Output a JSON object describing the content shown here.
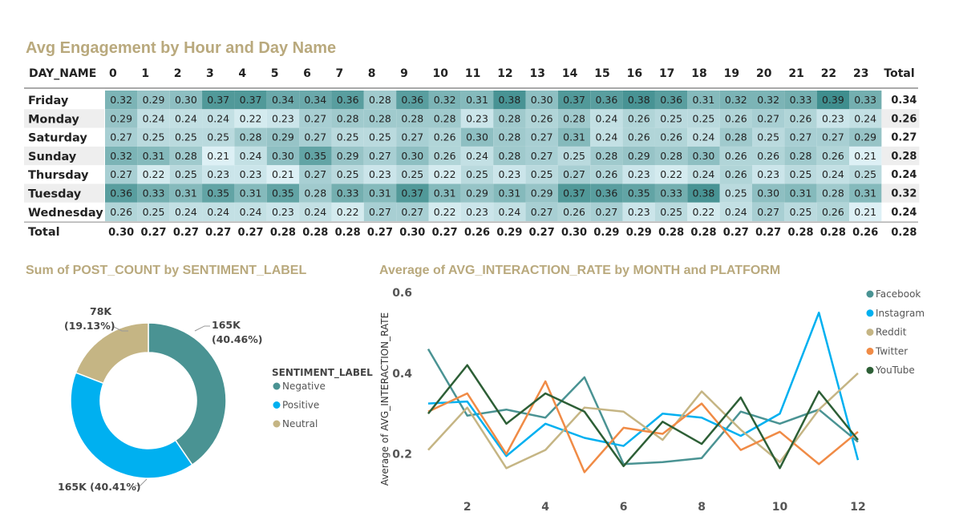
{
  "titles": {
    "heatmap": "Avg Engagement by Hour and Day Name",
    "donut": "Sum of POST_COUNT by SENTIMENT_LABEL",
    "line": "Average of AVG_INTERACTION_RATE by MONTH and PLATFORM"
  },
  "colors": {
    "title": "#b9a97d",
    "heat_low": "#ddf0f5",
    "heat_high": "#3f8e8e",
    "negative": "#4a9393",
    "positive": "#00b0f0",
    "neutral": "#c5b584",
    "facebook": "#4a9393",
    "instagram": "#00b0f0",
    "reddit": "#c5b584",
    "twitter": "#f08b46",
    "youtube": "#2d5f36"
  },
  "chart_data": [
    {
      "type": "heatmap",
      "title": "Avg Engagement by Hour and Day Name",
      "row_header": "DAY_NAME",
      "columns": [
        "0",
        "1",
        "2",
        "3",
        "4",
        "5",
        "6",
        "7",
        "8",
        "9",
        "10",
        "11",
        "12",
        "13",
        "14",
        "15",
        "16",
        "17",
        "18",
        "19",
        "20",
        "21",
        "22",
        "23"
      ],
      "total_label": "Total",
      "rows": [
        {
          "name": "Friday",
          "values": [
            0.32,
            0.29,
            0.3,
            0.37,
            0.37,
            0.34,
            0.34,
            0.36,
            0.28,
            0.36,
            0.32,
            0.31,
            0.38,
            0.3,
            0.37,
            0.36,
            0.38,
            0.36,
            0.31,
            0.32,
            0.32,
            0.33,
            0.39,
            0.33
          ],
          "total": 0.34
        },
        {
          "name": "Monday",
          "values": [
            0.29,
            0.24,
            0.24,
            0.24,
            0.22,
            0.23,
            0.27,
            0.28,
            0.28,
            0.28,
            0.28,
            0.23,
            0.28,
            0.26,
            0.28,
            0.24,
            0.26,
            0.25,
            0.25,
            0.26,
            0.27,
            0.26,
            0.23,
            0.24
          ],
          "total": 0.26
        },
        {
          "name": "Saturday",
          "values": [
            0.27,
            0.25,
            0.25,
            0.25,
            0.28,
            0.29,
            0.27,
            0.25,
            0.25,
            0.27,
            0.26,
            0.3,
            0.28,
            0.27,
            0.31,
            0.24,
            0.26,
            0.26,
            0.24,
            0.28,
            0.25,
            0.27,
            0.27,
            0.29
          ],
          "total": 0.27
        },
        {
          "name": "Sunday",
          "values": [
            0.32,
            0.31,
            0.28,
            0.21,
            0.24,
            0.3,
            0.35,
            0.29,
            0.27,
            0.3,
            0.26,
            0.24,
            0.28,
            0.27,
            0.25,
            0.28,
            0.29,
            0.28,
            0.3,
            0.26,
            0.26,
            0.28,
            0.26,
            0.21
          ],
          "total": 0.28
        },
        {
          "name": "Thursday",
          "values": [
            0.27,
            0.22,
            0.25,
            0.23,
            0.23,
            0.21,
            0.27,
            0.25,
            0.23,
            0.25,
            0.22,
            0.25,
            0.23,
            0.25,
            0.27,
            0.26,
            0.23,
            0.22,
            0.24,
            0.26,
            0.23,
            0.25,
            0.24,
            0.25
          ],
          "total": 0.24
        },
        {
          "name": "Tuesday",
          "values": [
            0.36,
            0.33,
            0.31,
            0.35,
            0.31,
            0.35,
            0.28,
            0.33,
            0.31,
            0.37,
            0.31,
            0.29,
            0.31,
            0.29,
            0.37,
            0.36,
            0.35,
            0.33,
            0.38,
            0.25,
            0.3,
            0.31,
            0.28,
            0.31
          ],
          "total": 0.32
        },
        {
          "name": "Wednesday",
          "values": [
            0.26,
            0.25,
            0.24,
            0.24,
            0.24,
            0.23,
            0.24,
            0.22,
            0.27,
            0.27,
            0.22,
            0.23,
            0.24,
            0.27,
            0.26,
            0.27,
            0.23,
            0.25,
            0.22,
            0.24,
            0.27,
            0.25,
            0.26,
            0.21
          ],
          "total": 0.24
        }
      ],
      "column_totals": [
        0.3,
        0.27,
        0.27,
        0.27,
        0.27,
        0.28,
        0.28,
        0.28,
        0.27,
        0.3,
        0.27,
        0.26,
        0.29,
        0.27,
        0.3,
        0.29,
        0.29,
        0.28,
        0.28,
        0.27,
        0.27,
        0.28,
        0.28,
        0.26
      ],
      "grand_total": 0.28
    },
    {
      "type": "pie",
      "title": "Sum of POST_COUNT by SENTIMENT_LABEL",
      "legend_title": "SENTIMENT_LABEL",
      "legend_position": "right",
      "slices": [
        {
          "name": "Negative",
          "value": 165000,
          "label": "165K",
          "pct_label": "(40.46%)"
        },
        {
          "name": "Positive",
          "value": 165000,
          "label": "165K (40.41%)"
        },
        {
          "name": "Neutral",
          "value": 78000,
          "label": "78K",
          "pct_label": "(19.13%)"
        }
      ],
      "percentages": [
        40.46,
        40.41,
        19.13
      ]
    },
    {
      "type": "line",
      "title": "Average of AVG_INTERACTION_RATE by MONTH and PLATFORM",
      "ylabel": "Average of AVG_INTERACTION_RATE",
      "xlabel": "",
      "x": [
        1,
        2,
        3,
        4,
        5,
        6,
        7,
        8,
        9,
        10,
        11,
        12
      ],
      "xticks": [
        2,
        4,
        6,
        8,
        10,
        12
      ],
      "yticks": [
        0.2,
        0.4,
        0.6
      ],
      "ytick_labels": [
        "0.2",
        "0.4",
        "0.6"
      ],
      "ylim": [
        0.12,
        0.6
      ],
      "xlim": [
        1,
        12
      ],
      "legend_position": "right",
      "series": [
        {
          "name": "Facebook",
          "color": "#4a9393",
          "values": [
            0.46,
            0.295,
            0.31,
            0.29,
            0.39,
            0.175,
            0.18,
            0.19,
            0.305,
            0.275,
            0.31,
            0.23
          ]
        },
        {
          "name": "Instagram",
          "color": "#00b0f0",
          "values": [
            0.325,
            0.33,
            0.195,
            0.275,
            0.24,
            0.22,
            0.3,
            0.29,
            0.245,
            0.3,
            0.55,
            0.185
          ]
        },
        {
          "name": "Reddit",
          "color": "#c5b584",
          "values": [
            0.21,
            0.315,
            0.165,
            0.21,
            0.315,
            0.305,
            0.235,
            0.355,
            0.26,
            0.18,
            0.31,
            0.4
          ]
        },
        {
          "name": "Twitter",
          "color": "#f08b46",
          "values": [
            0.305,
            0.35,
            0.2,
            0.38,
            0.155,
            0.265,
            0.25,
            0.325,
            0.21,
            0.255,
            0.175,
            0.255
          ]
        },
        {
          "name": "YouTube",
          "color": "#2d5f36",
          "values": [
            0.3,
            0.42,
            0.275,
            0.35,
            0.305,
            0.17,
            0.28,
            0.225,
            0.34,
            0.165,
            0.355,
            0.235
          ]
        }
      ]
    }
  ]
}
